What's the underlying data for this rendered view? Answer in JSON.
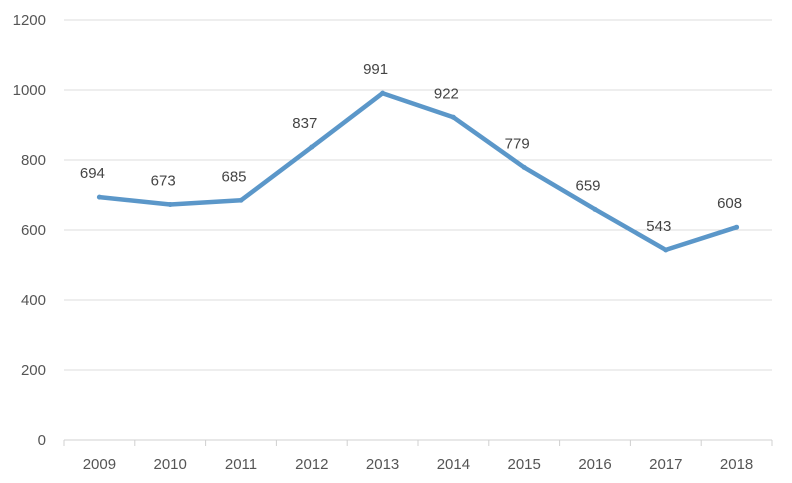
{
  "chart_data": {
    "type": "line",
    "title": "",
    "xlabel": "",
    "ylabel": "",
    "categories": [
      "2009",
      "2010",
      "2011",
      "2012",
      "2013",
      "2014",
      "2015",
      "2016",
      "2017",
      "2018"
    ],
    "series": [
      {
        "values": [
          694,
          673,
          685,
          837,
          991,
          922,
          779,
          659,
          543,
          608
        ],
        "color": "#5b97c9"
      }
    ],
    "ylim": [
      0,
      1200
    ],
    "yticks": [
      0,
      200,
      400,
      600,
      800,
      1000,
      1200
    ],
    "grid": true,
    "legend": "none",
    "data_labels": true
  }
}
